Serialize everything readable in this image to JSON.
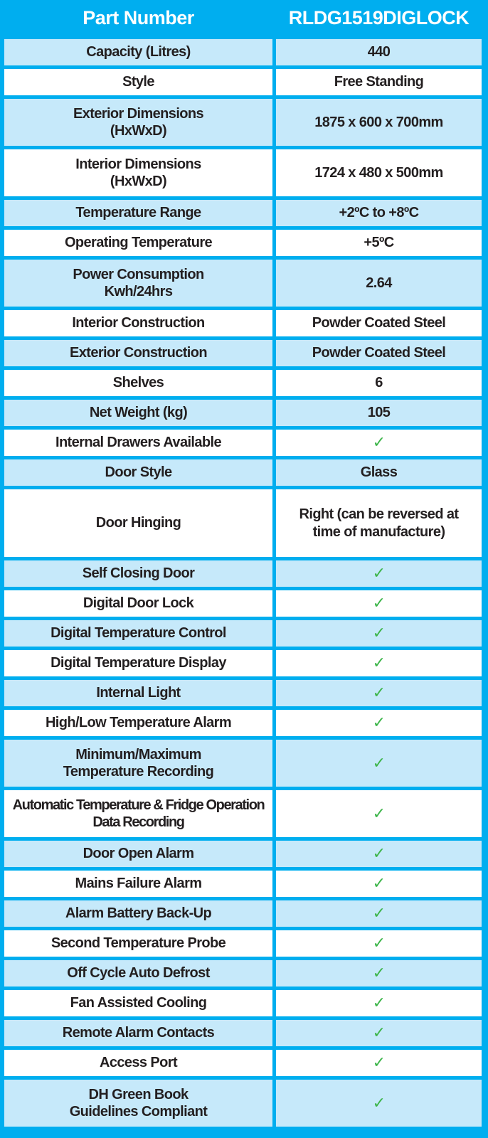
{
  "header": {
    "label": "Part Number",
    "value": "RLDG1519DIGLOCK"
  },
  "colors": {
    "border": "#00aeef",
    "row_alt": "#c6e9fa",
    "check": "#3db54a"
  },
  "check_icon": "checkmark-icon",
  "rows": [
    {
      "label": "Capacity (Litres)",
      "value": "440"
    },
    {
      "label": "Style",
      "value": "Free Standing"
    },
    {
      "label": "Exterior Dimensions (HxWxD)",
      "value": "1875 x 600 x 700mm"
    },
    {
      "label": "Interior Dimensions (HxWxD)",
      "value": "1724 x 480 x 500mm"
    },
    {
      "label": "Temperature Range",
      "value": "+2ºC to +8ºC"
    },
    {
      "label": "Operating Temperature",
      "value": "+5ºC"
    },
    {
      "label": "Power Consumption Kwh/24hrs",
      "value": "2.64"
    },
    {
      "label": "Interior Construction",
      "value": "Powder Coated Steel"
    },
    {
      "label": "Exterior Construction",
      "value": "Powder Coated Steel"
    },
    {
      "label": "Shelves",
      "value": "6"
    },
    {
      "label": "Net Weight (kg)",
      "value": "105"
    },
    {
      "label": "Internal Drawers Available",
      "value": "✓"
    },
    {
      "label": "Door Style",
      "value": "Glass"
    },
    {
      "label": "Door Hinging",
      "value": "Right (can be reversed at time of manufacture)"
    },
    {
      "label": "Self Closing Door",
      "value": "✓"
    },
    {
      "label": "Digital Door Lock",
      "value": "✓"
    },
    {
      "label": "Digital Temperature Control",
      "value": "✓"
    },
    {
      "label": "Digital Temperature Display",
      "value": "✓"
    },
    {
      "label": "Internal Light",
      "value": "✓"
    },
    {
      "label": "High/Low Temperature Alarm",
      "value": "✓"
    },
    {
      "label": "Minimum/Maximum Temperature Recording",
      "value": "✓"
    },
    {
      "label": "Automatic Temperature & Fridge Operation Data Recording",
      "value": "✓"
    },
    {
      "label": "Door Open Alarm",
      "value": "✓"
    },
    {
      "label": "Mains Failure Alarm",
      "value": "✓"
    },
    {
      "label": "Alarm Battery Back-Up",
      "value": "✓"
    },
    {
      "label": "Second Temperature Probe",
      "value": "✓"
    },
    {
      "label": "Off Cycle Auto Defrost",
      "value": "✓"
    },
    {
      "label": "Fan Assisted Cooling",
      "value": "✓"
    },
    {
      "label": "Remote Alarm Contacts",
      "value": "✓"
    },
    {
      "label": "Access Port",
      "value": "✓"
    },
    {
      "label": "DH Green Book Guidelines Compliant",
      "value": "✓"
    }
  ]
}
